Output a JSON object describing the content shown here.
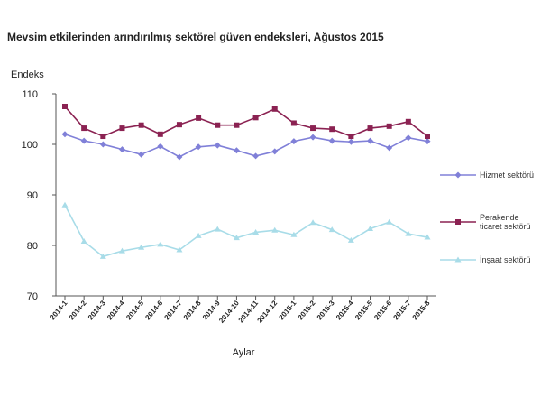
{
  "title": "Mevsim etkilerinden arındırılmış sektörel güven endeksleri, Ağustos 2015",
  "chart_data": {
    "type": "line",
    "title": "Mevsim etkilerinden arındırılmış sektörel güven endeksleri, Ağustos 2015",
    "xlabel": "Aylar",
    "ylabel": "Endeks",
    "ylim": [
      70,
      110
    ],
    "yticks": [
      70,
      80,
      90,
      100,
      110
    ],
    "categories": [
      "2014-1",
      "2014-2",
      "2014-3",
      "2014-4",
      "2014-5",
      "2014-6",
      "2014-7",
      "2014-8",
      "2014-9",
      "2014-10",
      "2014-11",
      "2014-12",
      "2015-1",
      "2015-2",
      "2015-3",
      "2015-4",
      "2015-5",
      "2015-6",
      "2015-7",
      "2015-8"
    ],
    "grid": false,
    "legend": "right",
    "series": [
      {
        "name": "Hizmet sektörü",
        "color": "#8080d8",
        "marker": "diamond",
        "values": [
          102.0,
          100.7,
          100.0,
          99.0,
          98.0,
          99.6,
          97.5,
          99.5,
          99.8,
          98.8,
          97.7,
          98.6,
          100.6,
          101.4,
          100.7,
          100.5,
          100.7,
          99.3,
          101.3,
          100.6
        ]
      },
      {
        "name": "Perakende ticaret sektörü",
        "color": "#8b2252",
        "marker": "square",
        "values": [
          107.5,
          103.2,
          101.6,
          103.2,
          103.8,
          102.0,
          103.9,
          105.2,
          103.8,
          103.8,
          105.3,
          107.0,
          104.2,
          103.2,
          103.0,
          101.6,
          103.2,
          103.6,
          104.5,
          101.6
        ]
      },
      {
        "name": "İnşaat sektörü",
        "color": "#a8dce8",
        "marker": "triangle",
        "values": [
          88.0,
          80.8,
          77.8,
          78.9,
          79.6,
          80.2,
          79.1,
          81.9,
          83.2,
          81.5,
          82.6,
          83.0,
          82.1,
          84.5,
          83.1,
          81.0,
          83.3,
          84.6,
          82.3,
          81.6
        ]
      }
    ]
  }
}
